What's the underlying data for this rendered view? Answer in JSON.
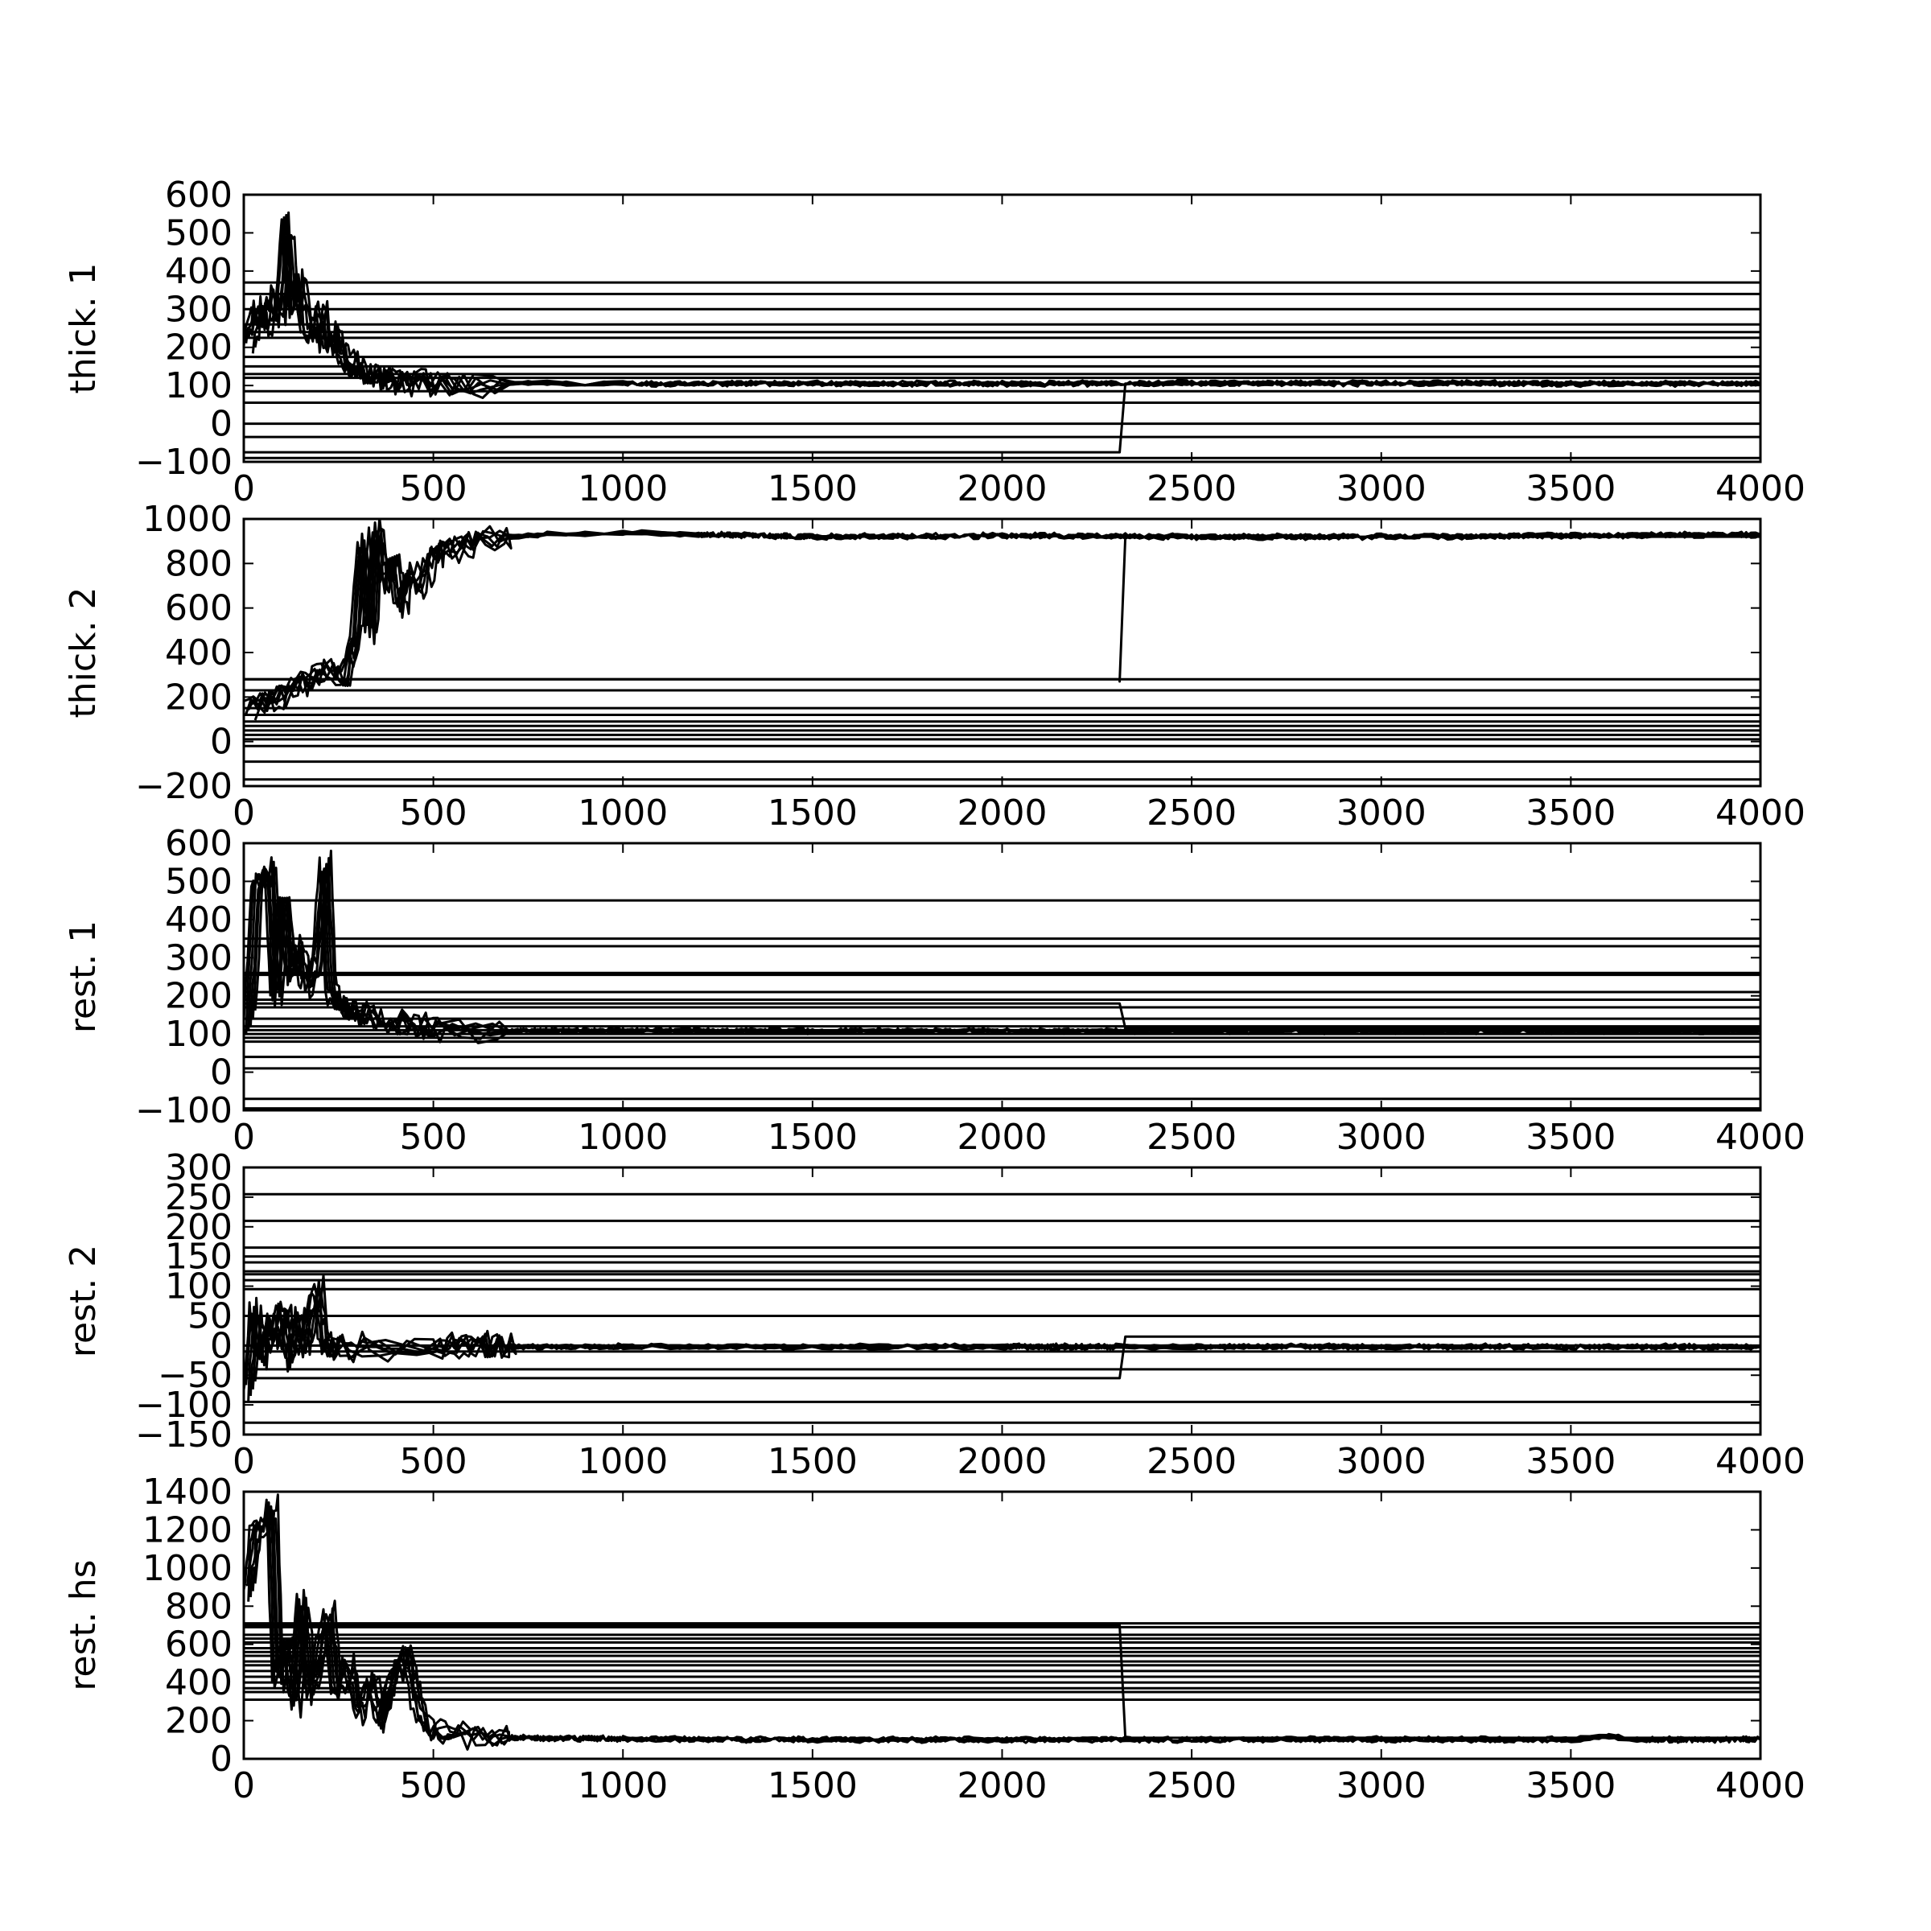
{
  "chart_data": [
    {
      "type": "line",
      "ylabel": "thick. 1",
      "xlim": [
        0,
        4000
      ],
      "ylim": [
        -100,
        600
      ],
      "xticks": [
        0,
        500,
        1000,
        1500,
        2000,
        2500,
        3000,
        3500,
        4000
      ],
      "yticks": [
        -100,
        0,
        100,
        200,
        300,
        400,
        500,
        600
      ],
      "converged_trace": [
        [
          0,
          220
        ],
        [
          20,
          300
        ],
        [
          40,
          250
        ],
        [
          60,
          340
        ],
        [
          80,
          280
        ],
        [
          100,
          520
        ],
        [
          115,
          300
        ],
        [
          130,
          380
        ],
        [
          150,
          250
        ],
        [
          170,
          220
        ],
        [
          190,
          300
        ],
        [
          210,
          190
        ],
        [
          230,
          240
        ],
        [
          250,
          170
        ],
        [
          270,
          150
        ],
        [
          300,
          135
        ],
        [
          330,
          125
        ],
        [
          360,
          118
        ],
        [
          400,
          112
        ],
        [
          450,
          110
        ],
        [
          500,
          108
        ],
        [
          600,
          106
        ],
        [
          800,
          106
        ],
        [
          1000,
          105
        ],
        [
          1500,
          105
        ],
        [
          2000,
          105
        ],
        [
          2500,
          106
        ],
        [
          3000,
          106
        ],
        [
          3500,
          105
        ],
        [
          4000,
          105
        ]
      ],
      "outlier_trace": {
        "x": 2310,
        "jump_from": -75,
        "jump_to": 105,
        "flat_before": -75
      },
      "horizontal_chains": [
        370,
        340,
        300,
        260,
        240,
        225,
        175,
        150,
        130,
        120,
        85,
        55,
        0,
        -35,
        -90
      ]
    },
    {
      "type": "line",
      "ylabel": "thick. 2",
      "xlim": [
        0,
        4000
      ],
      "ylim": [
        -200,
        1000
      ],
      "xticks": [
        0,
        500,
        1000,
        1500,
        2000,
        2500,
        3000,
        3500,
        4000
      ],
      "yticks": [
        -200,
        0,
        200,
        400,
        600,
        800,
        1000
      ],
      "converged_trace": [
        [
          0,
          150
        ],
        [
          50,
          200
        ],
        [
          100,
          230
        ],
        [
          150,
          280
        ],
        [
          200,
          320
        ],
        [
          250,
          300
        ],
        [
          280,
          450
        ],
        [
          300,
          900
        ],
        [
          320,
          500
        ],
        [
          340,
          960
        ],
        [
          360,
          700
        ],
        [
          380,
          800
        ],
        [
          400,
          600
        ],
        [
          420,
          750
        ],
        [
          450,
          700
        ],
        [
          480,
          820
        ],
        [
          500,
          850
        ],
        [
          550,
          880
        ],
        [
          600,
          900
        ],
        [
          700,
          920
        ],
        [
          800,
          930
        ],
        [
          1000,
          940
        ],
        [
          1200,
          930
        ],
        [
          1500,
          920
        ],
        [
          2000,
          925
        ],
        [
          2500,
          920
        ],
        [
          3000,
          920
        ],
        [
          3500,
          925
        ],
        [
          4000,
          930
        ]
      ],
      "outlier_trace": {
        "x": 2310,
        "jump_from": 270,
        "jump_to": 920,
        "flat_before": 280
      },
      "horizontal_chains": [
        280,
        230,
        150,
        120,
        90,
        70,
        50,
        30,
        10,
        -20,
        -90,
        -170
      ]
    },
    {
      "type": "line",
      "ylabel": "rest. 1",
      "xlim": [
        0,
        4000
      ],
      "ylim": [
        -100,
        600
      ],
      "xticks": [
        0,
        500,
        1000,
        1500,
        2000,
        2500,
        3000,
        3500,
        4000
      ],
      "yticks": [
        -100,
        0,
        100,
        200,
        300,
        400,
        500,
        600
      ],
      "converged_trace": [
        [
          0,
          120
        ],
        [
          20,
          500
        ],
        [
          40,
          510
        ],
        [
          55,
          530
        ],
        [
          70,
          200
        ],
        [
          90,
          480
        ],
        [
          110,
          250
        ],
        [
          130,
          330
        ],
        [
          150,
          220
        ],
        [
          180,
          300
        ],
        [
          200,
          550
        ],
        [
          215,
          200
        ],
        [
          240,
          180
        ],
        [
          270,
          160
        ],
        [
          300,
          150
        ],
        [
          350,
          140
        ],
        [
          400,
          125
        ],
        [
          450,
          115
        ],
        [
          500,
          110
        ],
        [
          700,
          108
        ],
        [
          1000,
          108
        ],
        [
          1500,
          108
        ],
        [
          2000,
          108
        ],
        [
          2500,
          107
        ],
        [
          3000,
          108
        ],
        [
          3500,
          108
        ],
        [
          4000,
          108
        ]
      ],
      "outlier_trace": {
        "x": 2310,
        "jump_from": 180,
        "jump_to": 115,
        "flat_before": 180
      },
      "horizontal_chains": [
        450,
        350,
        330,
        260,
        255,
        210,
        190,
        170,
        140,
        120,
        110,
        100,
        90,
        80,
        40,
        10,
        -70,
        -95
      ]
    },
    {
      "type": "line",
      "ylabel": "rest. 2",
      "xlim": [
        0,
        4000
      ],
      "ylim": [
        -150,
        300
      ],
      "xticks": [
        0,
        500,
        1000,
        1500,
        2000,
        2500,
        3000,
        3500,
        4000
      ],
      "yticks": [
        -150,
        -100,
        -50,
        0,
        50,
        100,
        150,
        200,
        250,
        300
      ],
      "converged_trace": [
        [
          0,
          -80
        ],
        [
          15,
          60
        ],
        [
          30,
          -20
        ],
        [
          50,
          40
        ],
        [
          70,
          10
        ],
        [
          90,
          70
        ],
        [
          110,
          -30
        ],
        [
          130,
          50
        ],
        [
          150,
          -5
        ],
        [
          180,
          100
        ],
        [
          200,
          0
        ],
        [
          230,
          -5
        ],
        [
          300,
          -3
        ],
        [
          500,
          -2
        ],
        [
          1000,
          -2
        ],
        [
          2000,
          -2
        ],
        [
          2300,
          -2
        ],
        [
          2500,
          -2
        ],
        [
          3000,
          -2
        ],
        [
          3500,
          -2
        ],
        [
          4000,
          -2
        ]
      ],
      "outlier_trace": {
        "x": 2310,
        "jump_from": -55,
        "jump_to": 15,
        "flat_before": -55
      },
      "horizontal_chains": [
        255,
        210,
        165,
        150,
        140,
        125,
        120,
        110,
        95,
        50,
        0,
        -10,
        -40,
        -95,
        -130
      ]
    },
    {
      "type": "line",
      "ylabel": "rest. hs",
      "xlim": [
        0,
        4000
      ],
      "ylim": [
        0,
        1400
      ],
      "xticks": [
        0,
        500,
        1000,
        1500,
        2000,
        2500,
        3000,
        3500,
        4000
      ],
      "yticks": [
        0,
        200,
        400,
        600,
        800,
        1000,
        1200,
        1400
      ],
      "converged_trace": [
        [
          0,
          880
        ],
        [
          15,
          1200
        ],
        [
          40,
          1210
        ],
        [
          60,
          1320
        ],
        [
          75,
          400
        ],
        [
          100,
          650
        ],
        [
          120,
          300
        ],
        [
          140,
          850
        ],
        [
          160,
          350
        ],
        [
          190,
          600
        ],
        [
          210,
          750
        ],
        [
          230,
          300
        ],
        [
          260,
          500
        ],
        [
          290,
          250
        ],
        [
          320,
          400
        ],
        [
          350,
          200
        ],
        [
          380,
          450
        ],
        [
          420,
          550
        ],
        [
          440,
          300
        ],
        [
          470,
          160
        ],
        [
          520,
          140
        ],
        [
          600,
          120
        ],
        [
          700,
          110
        ],
        [
          1000,
          105
        ],
        [
          1500,
          100
        ],
        [
          2000,
          100
        ],
        [
          2500,
          100
        ],
        [
          3000,
          102
        ],
        [
          3500,
          100
        ],
        [
          3600,
          120
        ],
        [
          3700,
          100
        ],
        [
          4000,
          102
        ]
      ],
      "outlier_trace": {
        "x": 2310,
        "jump_from": 700,
        "jump_to": 110,
        "flat_before": 700
      },
      "horizontal_chains": [
        710,
        690,
        650,
        630,
        610,
        580,
        560,
        540,
        510,
        490,
        460,
        430,
        400,
        370,
        350,
        310
      ]
    }
  ]
}
